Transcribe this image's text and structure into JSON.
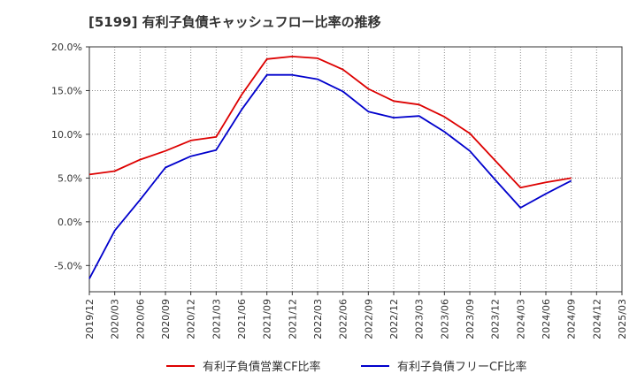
{
  "chart_data": {
    "type": "line",
    "title": "[5199]  有利子負債キャッシュフロー比率の推移",
    "xlabel": "",
    "ylabel": "",
    "ylim": [
      -8,
      20
    ],
    "y_ticks": [
      20,
      15,
      10,
      5,
      0,
      -5
    ],
    "y_tick_labels": [
      "20.0%",
      "15.0%",
      "10.0%",
      "5.0%",
      "0.0%",
      "-5.0%"
    ],
    "x": [
      "2019/12",
      "2020/03",
      "2020/06",
      "2020/09",
      "2020/12",
      "2021/03",
      "2021/06",
      "2021/09",
      "2021/12",
      "2022/03",
      "2022/06",
      "2022/09",
      "2022/12",
      "2023/03",
      "2023/06",
      "2023/09",
      "2023/12",
      "2024/03",
      "2024/06",
      "2024/09",
      "2024/12",
      "2025/03"
    ],
    "grid": true,
    "legend_position": "bottom",
    "series": [
      {
        "name": "有利子負債営業CF比率",
        "color": "#dd0000",
        "values": [
          5.4,
          5.8,
          7.1,
          8.1,
          9.3,
          9.7,
          14.5,
          18.6,
          18.9,
          18.7,
          17.4,
          15.2,
          13.8,
          13.4,
          12.0,
          10.1,
          7.0,
          3.9,
          4.5,
          5.0,
          null,
          null
        ]
      },
      {
        "name": "有利子負債フリーCF比率",
        "color": "#0000cc",
        "values": [
          -6.5,
          -1.0,
          2.5,
          6.2,
          7.5,
          8.2,
          12.8,
          16.8,
          16.8,
          16.3,
          14.9,
          12.6,
          11.9,
          12.1,
          10.3,
          8.1,
          4.8,
          1.6,
          3.2,
          4.7,
          null,
          null
        ]
      }
    ]
  }
}
